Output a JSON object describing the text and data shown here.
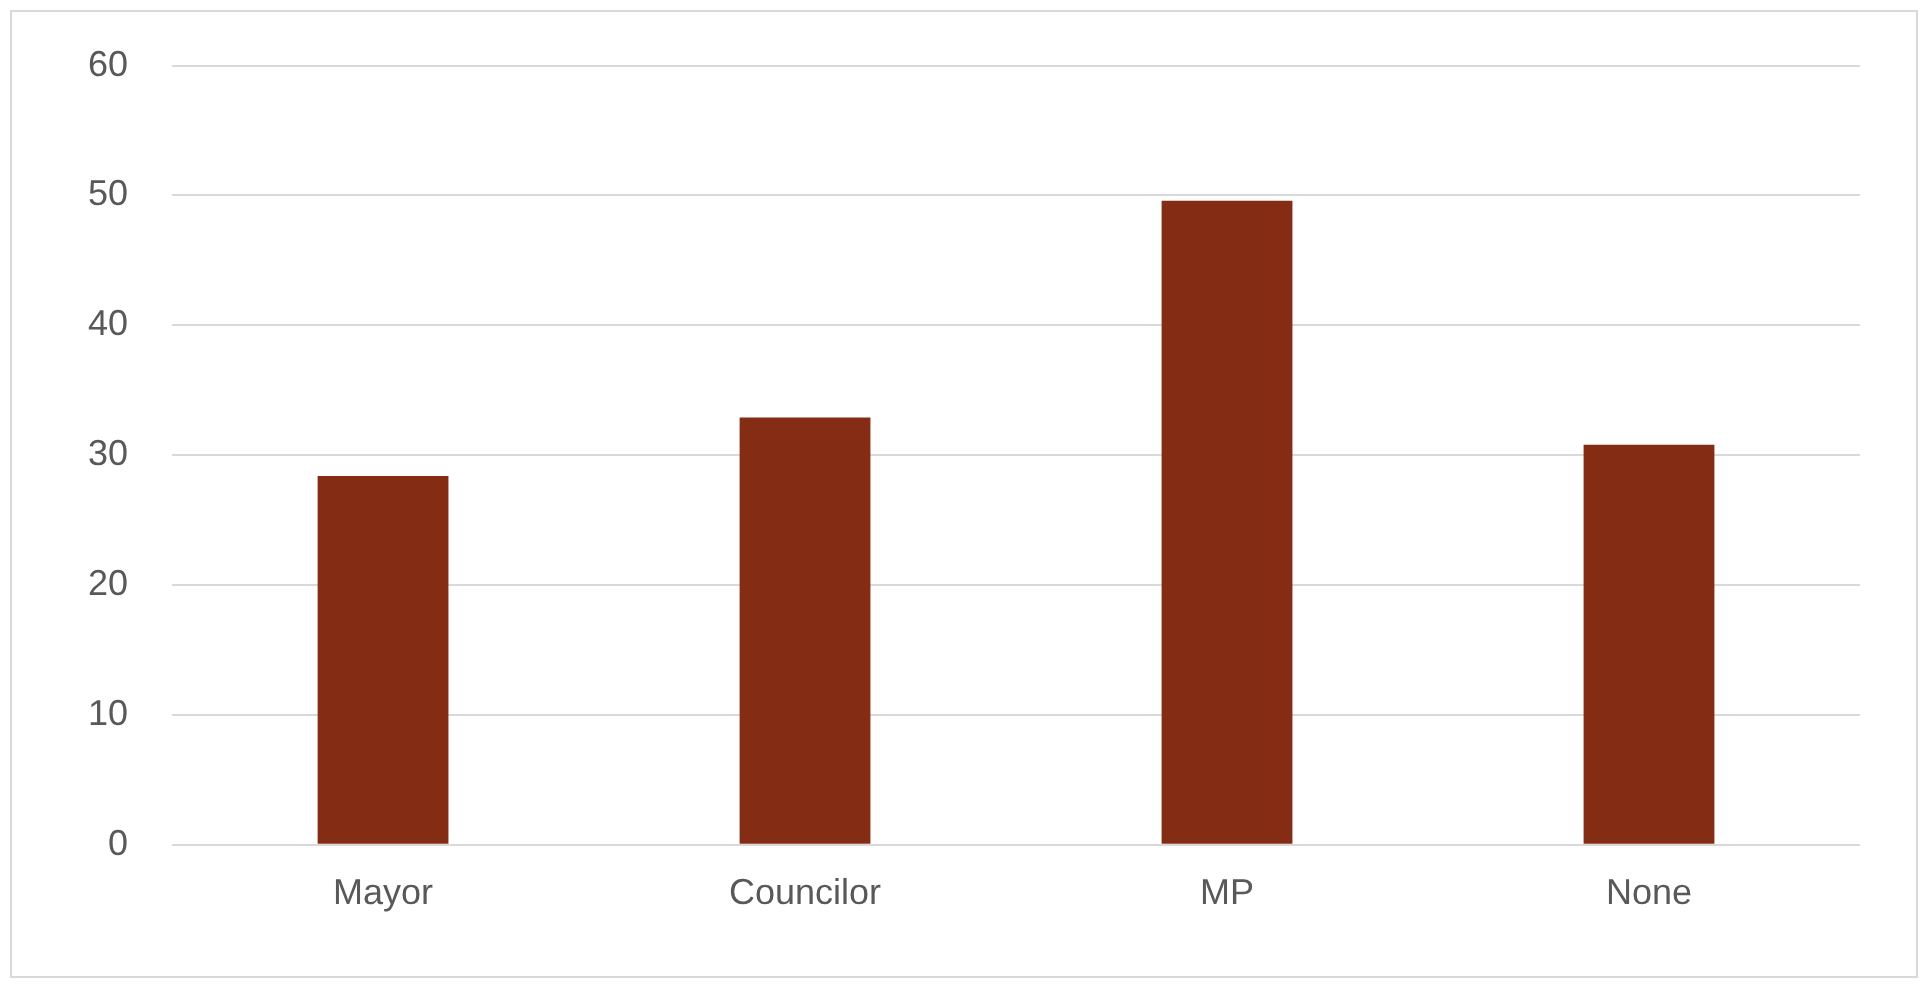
{
  "chart_data": {
    "type": "bar",
    "categories": [
      "Mayor",
      "Councilor",
      "MP",
      "None"
    ],
    "values": [
      28.4,
      32.9,
      49.6,
      30.8
    ],
    "color": "#842c14",
    "ylim": [
      0,
      60
    ],
    "yticks": [
      0,
      10,
      20,
      30,
      40,
      50,
      60
    ],
    "grid": "y"
  }
}
